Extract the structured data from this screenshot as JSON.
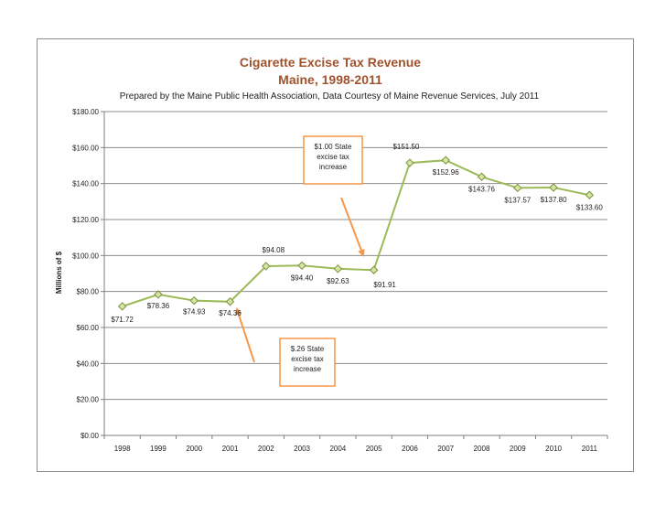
{
  "chart_data": {
    "type": "line",
    "title": "Cigarette Excise Tax Revenue",
    "title_line2": "Maine, 1998-2011",
    "subtitle": "Prepared by the Maine Public Health Association, Data Courtesy of Maine Revenue Services, July  2011",
    "xlabel": "",
    "ylabel": "Millions of $",
    "ylim": [
      0,
      180
    ],
    "y_ticks": [
      "$0.00",
      "$20.00",
      "$40.00",
      "$60.00",
      "$80.00",
      "$100.00",
      "$120.00",
      "$140.00",
      "$160.00",
      "$180.00"
    ],
    "categories": [
      "1998",
      "1999",
      "2000",
      "2001",
      "2002",
      "2003",
      "2004",
      "2005",
      "2006",
      "2007",
      "2008",
      "2009",
      "2010",
      "2011"
    ],
    "values": [
      71.72,
      78.36,
      74.93,
      74.36,
      94.08,
      94.4,
      92.63,
      91.91,
      151.5,
      152.96,
      143.76,
      137.57,
      137.8,
      133.6
    ],
    "data_labels": [
      "$71.72",
      "$78.36",
      "$74.93",
      "$74.36",
      "$94.08",
      "$94.40",
      "$92.63",
      "$91.91",
      "$151.50",
      "$152.96",
      "$143.76",
      "$137.57",
      "$137.80",
      "$133.60"
    ],
    "grid": true,
    "legend": "none",
    "line_color": "#9bbb59",
    "marker_color": "#d7e4a6",
    "marker_edge": "#77933c",
    "annotations": [
      {
        "text": [
          "$1.00 State",
          "excise tax",
          "increase"
        ],
        "arrow_to_year": "2005"
      },
      {
        "text": [
          "$.26 State",
          "excise tax",
          "increase"
        ],
        "arrow_to_year": "2001"
      }
    ],
    "annotation_color": "#f79646"
  }
}
